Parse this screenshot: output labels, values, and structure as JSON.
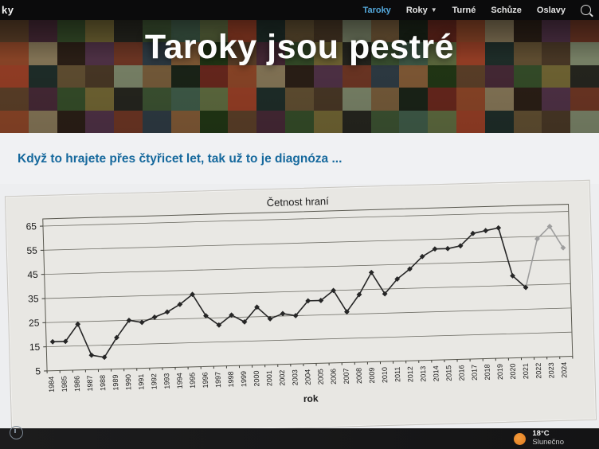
{
  "nav": {
    "logo_fragment": "ky",
    "items": [
      {
        "label": "Taroky",
        "active": true,
        "has_dropdown": false
      },
      {
        "label": "Roky",
        "active": false,
        "has_dropdown": true
      },
      {
        "label": "Turné",
        "active": false,
        "has_dropdown": false
      },
      {
        "label": "Schůze",
        "active": false,
        "has_dropdown": false
      },
      {
        "label": "Oslavy",
        "active": false,
        "has_dropdown": false
      }
    ]
  },
  "hero": {
    "title": "Taroky jsou pestré"
  },
  "article": {
    "heading": "Když to hrajete přes čtyřicet let, tak už to je diagnóza ..."
  },
  "chart_data": {
    "type": "line",
    "title": "Četnost hraní",
    "xlabel": "rok",
    "ylabel": "",
    "ylim": [
      5,
      65
    ],
    "yticks": [
      5,
      15,
      25,
      35,
      45,
      55,
      65
    ],
    "grid": true,
    "legend": false,
    "marker": "diamond",
    "line_color": "#262626",
    "faded_color": "#9e9e9e",
    "faded_from_index": 38,
    "categories": [
      1984,
      1985,
      1986,
      1987,
      1988,
      1989,
      1990,
      1991,
      1992,
      1993,
      1994,
      1995,
      1996,
      1997,
      1998,
      1999,
      2000,
      2001,
      2002,
      2003,
      2004,
      2005,
      2006,
      2007,
      2008,
      2009,
      2010,
      2011,
      2012,
      2013,
      2014,
      2015,
      2016,
      2017,
      2018,
      2019,
      2020,
      2021,
      2022,
      2023,
      2024
    ],
    "values": [
      17,
      17,
      24,
      11,
      10,
      18,
      25,
      24,
      26,
      28,
      31,
      35,
      26,
      22,
      26,
      23,
      29,
      24,
      26,
      25,
      31,
      31,
      35,
      26,
      33,
      42,
      33,
      39,
      43,
      48,
      51,
      51,
      52,
      57,
      58,
      59,
      39,
      34,
      54,
      59,
      50
    ]
  },
  "taskbar": {
    "weather": {
      "temp": "18°C",
      "condition": "Slunečno"
    }
  }
}
